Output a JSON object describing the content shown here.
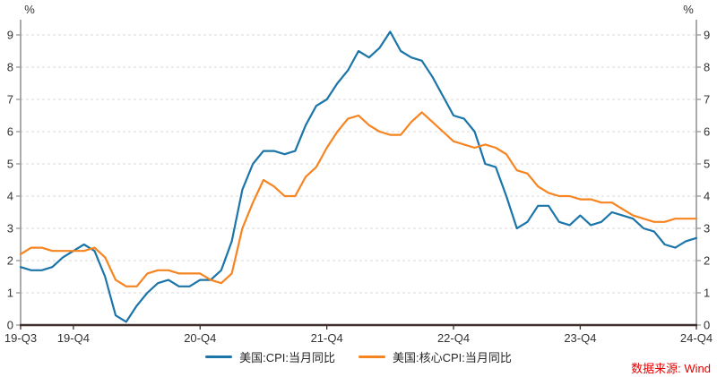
{
  "chart_data": {
    "type": "line",
    "title": "",
    "unit_label": "%",
    "ylim": [
      0,
      9
    ],
    "y_ticks": [
      0,
      1,
      2,
      3,
      4,
      5,
      6,
      7,
      8,
      9
    ],
    "grid": "horizontal-dashed",
    "legend_position": "bottom-center",
    "x_frequency": "monthly",
    "x": [
      "2019-07",
      "2019-08",
      "2019-09",
      "2019-10",
      "2019-11",
      "2019-12",
      "2020-01",
      "2020-02",
      "2020-03",
      "2020-04",
      "2020-05",
      "2020-06",
      "2020-07",
      "2020-08",
      "2020-09",
      "2020-10",
      "2020-11",
      "2020-12",
      "2021-01",
      "2021-02",
      "2021-03",
      "2021-04",
      "2021-05",
      "2021-06",
      "2021-07",
      "2021-08",
      "2021-09",
      "2021-10",
      "2021-11",
      "2021-12",
      "2022-01",
      "2022-02",
      "2022-03",
      "2022-04",
      "2022-05",
      "2022-06",
      "2022-07",
      "2022-08",
      "2022-09",
      "2022-10",
      "2022-11",
      "2022-12",
      "2023-01",
      "2023-02",
      "2023-03",
      "2023-04",
      "2023-05",
      "2023-06",
      "2023-07",
      "2023-08",
      "2023-09",
      "2023-10",
      "2023-11",
      "2023-12",
      "2024-01",
      "2024-02",
      "2024-03",
      "2024-04",
      "2024-05",
      "2024-06",
      "2024-07",
      "2024-08",
      "2024-09",
      "2024-10",
      "2024-11"
    ],
    "x_ticks": [
      {
        "index": 0,
        "label": "19-Q3"
      },
      {
        "index": 5,
        "label": "19-Q4"
      },
      {
        "index": 17,
        "label": "20-Q4"
      },
      {
        "index": 29,
        "label": "21-Q4"
      },
      {
        "index": 41,
        "label": "22-Q4"
      },
      {
        "index": 53,
        "label": "23-Q4"
      },
      {
        "index": 64,
        "label": "24-Q4"
      }
    ],
    "series": [
      {
        "name": "美国:CPI:当月同比",
        "color": "#1b75a8",
        "values": [
          1.8,
          1.7,
          1.7,
          1.8,
          2.1,
          2.3,
          2.5,
          2.3,
          1.5,
          0.3,
          0.1,
          0.6,
          1.0,
          1.3,
          1.4,
          1.2,
          1.2,
          1.4,
          1.4,
          1.7,
          2.6,
          4.2,
          5.0,
          5.4,
          5.4,
          5.3,
          5.4,
          6.2,
          6.8,
          7.0,
          7.5,
          7.9,
          8.5,
          8.3,
          8.6,
          9.1,
          8.5,
          8.3,
          8.2,
          7.7,
          7.1,
          6.5,
          6.4,
          6.0,
          5.0,
          4.9,
          4.0,
          3.0,
          3.2,
          3.7,
          3.7,
          3.2,
          3.1,
          3.4,
          3.1,
          3.2,
          3.5,
          3.4,
          3.3,
          3.0,
          2.9,
          2.5,
          2.4,
          2.6,
          2.7
        ]
      },
      {
        "name": "美国:核心CPI:当月同比",
        "color": "#f68420",
        "values": [
          2.2,
          2.4,
          2.4,
          2.3,
          2.3,
          2.3,
          2.3,
          2.4,
          2.1,
          1.4,
          1.2,
          1.2,
          1.6,
          1.7,
          1.7,
          1.6,
          1.6,
          1.6,
          1.4,
          1.3,
          1.6,
          3.0,
          3.8,
          4.5,
          4.3,
          4.0,
          4.0,
          4.6,
          4.9,
          5.5,
          6.0,
          6.4,
          6.5,
          6.2,
          6.0,
          5.9,
          5.9,
          6.3,
          6.6,
          6.3,
          6.0,
          5.7,
          5.6,
          5.5,
          5.6,
          5.5,
          5.3,
          4.8,
          4.7,
          4.3,
          4.1,
          4.0,
          4.0,
          3.9,
          3.9,
          3.8,
          3.8,
          3.6,
          3.4,
          3.3,
          3.2,
          3.2,
          3.3,
          3.3,
          3.3
        ]
      }
    ],
    "style": {
      "grid_color": "#d9d9d9",
      "spine_color": "#8f8f8f",
      "axis_color": "#40302e",
      "text_color": "#333333"
    }
  },
  "source": {
    "label": "数据来源: Wind",
    "color": "#e60000"
  }
}
